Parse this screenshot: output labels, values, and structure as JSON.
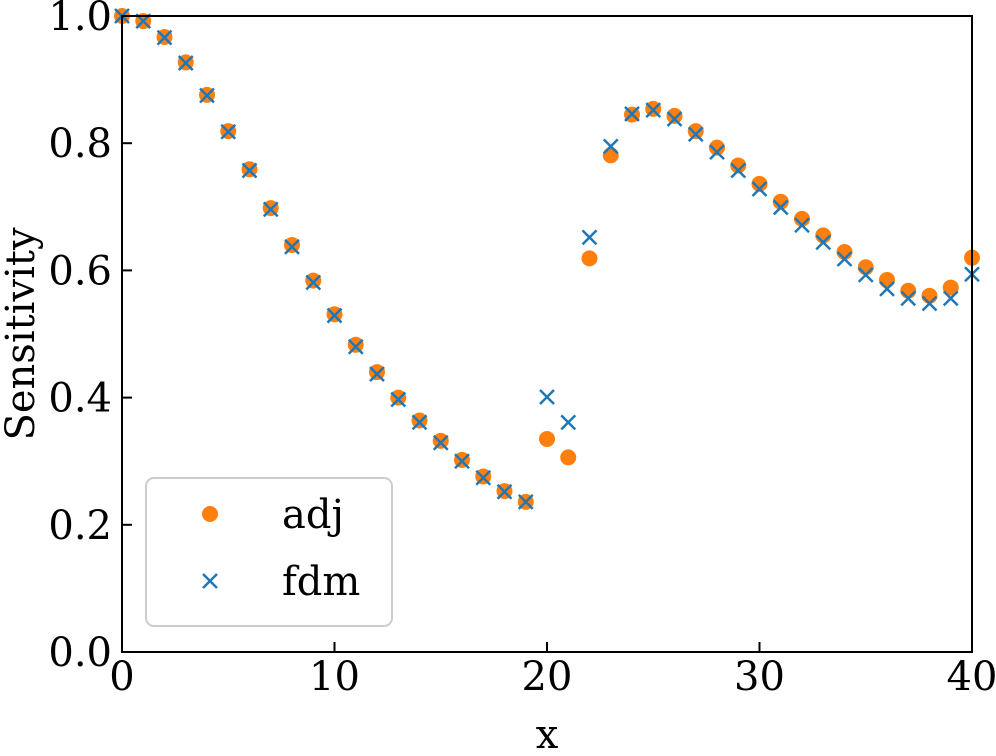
{
  "chart_data": {
    "type": "scatter",
    "xlabel": "x",
    "ylabel": "Sensitivity",
    "xlim": [
      0,
      40
    ],
    "ylim": [
      0.0,
      1.0
    ],
    "xticks": [
      "0",
      "10",
      "20",
      "30",
      "40"
    ],
    "yticks": [
      "0.0",
      "0.2",
      "0.4",
      "0.6",
      "0.8",
      "1.0"
    ],
    "grid": false,
    "legend_position": "lower-left",
    "x": [
      0,
      1,
      2,
      3,
      4,
      5,
      6,
      7,
      8,
      9,
      10,
      11,
      12,
      13,
      14,
      15,
      16,
      17,
      18,
      19,
      20,
      21,
      22,
      23,
      24,
      25,
      26,
      27,
      28,
      29,
      30,
      31,
      32,
      33,
      34,
      35,
      36,
      37,
      38,
      39,
      40
    ],
    "series": [
      {
        "name": "adj",
        "marker": "circle",
        "color": "#ff7f0e",
        "values": [
          1.0,
          0.992,
          0.967,
          0.927,
          0.876,
          0.819,
          0.759,
          0.698,
          0.64,
          0.584,
          0.531,
          0.483,
          0.44,
          0.4,
          0.364,
          0.332,
          0.302,
          0.276,
          0.253,
          0.236,
          0.335,
          0.306,
          0.619,
          0.781,
          0.845,
          0.854,
          0.843,
          0.819,
          0.793,
          0.765,
          0.736,
          0.708,
          0.681,
          0.655,
          0.629,
          0.605,
          0.585,
          0.568,
          0.56,
          0.573,
          0.62
        ]
      },
      {
        "name": "fdm",
        "marker": "x",
        "color": "#1f77b4",
        "values": [
          1.0,
          0.992,
          0.966,
          0.926,
          0.875,
          0.818,
          0.757,
          0.696,
          0.637,
          0.581,
          0.529,
          0.48,
          0.437,
          0.397,
          0.361,
          0.329,
          0.3,
          0.274,
          0.252,
          0.236,
          0.401,
          0.361,
          0.652,
          0.795,
          0.846,
          0.852,
          0.838,
          0.814,
          0.786,
          0.757,
          0.728,
          0.699,
          0.671,
          0.644,
          0.618,
          0.593,
          0.571,
          0.556,
          0.548,
          0.556,
          0.594
        ]
      }
    ]
  }
}
